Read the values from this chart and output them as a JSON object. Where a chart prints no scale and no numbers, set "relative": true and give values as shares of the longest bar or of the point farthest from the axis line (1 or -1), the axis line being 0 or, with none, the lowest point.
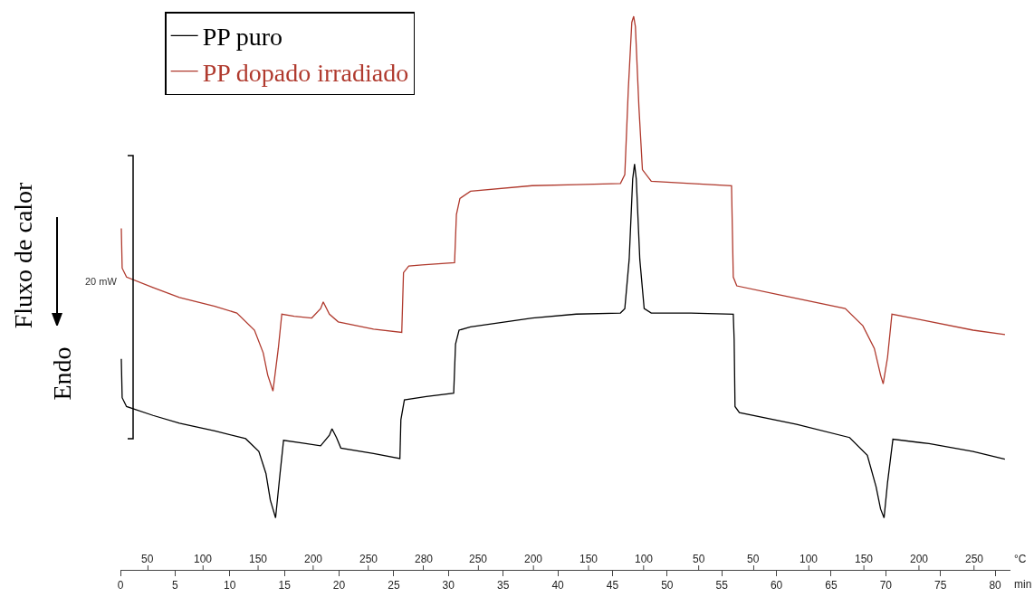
{
  "chart_data": {
    "type": "line",
    "relative": true,
    "ylabel": "Fluxo de calor",
    "xlabel": "min",
    "x2label": "°C",
    "annotations": [
      "Endo",
      "20 mW",
      "50",
      "100",
      "150",
      "200",
      "250",
      "280",
      "250",
      "200",
      "150",
      "100",
      "50",
      "50",
      "100",
      "150",
      "200",
      "250"
    ],
    "xlim": [
      0,
      81.4
    ],
    "xticks": [
      0,
      5,
      10,
      15,
      20,
      25,
      30,
      35,
      40,
      45,
      50,
      55,
      60,
      65,
      70,
      75,
      80
    ],
    "grid": false,
    "legend": "top left",
    "marker": "none",
    "line_style": "solid",
    "series": [
      {
        "name": "PP puro",
        "color": "#000000",
        "x": [
          0.08,
          0.16,
          0.56,
          2.98,
          5.4,
          8.63,
          11.45,
          12.66,
          13.31,
          13.71,
          14.19,
          14.6,
          14.92,
          16.69,
          18.31,
          19.11,
          19.35,
          19.76,
          20.16,
          23.15,
          25.56,
          25.65,
          25.97,
          27.98,
          30.48,
          30.65,
          30.97,
          32.02,
          37.66,
          41.69,
          45.73,
          46.13,
          46.53,
          46.85,
          47.02,
          47.18,
          47.5,
          47.9,
          48.55,
          52.18,
          56.05,
          56.13,
          56.21,
          56.61,
          61.85,
          66.69,
          68.31,
          69.11,
          69.52,
          69.84,
          70.16,
          70.65,
          73.95,
          77.98,
          80.89
        ],
        "values": [
          0.381,
          0.311,
          0.295,
          0.279,
          0.265,
          0.251,
          0.237,
          0.214,
          0.174,
          0.126,
          0.094,
          0.174,
          0.234,
          0.229,
          0.224,
          0.243,
          0.255,
          0.239,
          0.22,
          0.21,
          0.201,
          0.271,
          0.307,
          0.313,
          0.319,
          0.408,
          0.433,
          0.439,
          0.455,
          0.462,
          0.464,
          0.472,
          0.561,
          0.706,
          0.733,
          0.706,
          0.561,
          0.472,
          0.464,
          0.464,
          0.462,
          0.416,
          0.295,
          0.284,
          0.263,
          0.239,
          0.207,
          0.15,
          0.11,
          0.094,
          0.158,
          0.236,
          0.228,
          0.214,
          0.2
        ]
      },
      {
        "name": "PP dopado irradiado",
        "color": "#b03a2e",
        "x": [
          0.08,
          0.16,
          0.56,
          2.98,
          5.4,
          8.63,
          10.65,
          12.26,
          13.06,
          13.47,
          13.95,
          14.44,
          14.76,
          15.89,
          17.5,
          18.31,
          18.55,
          19.11,
          19.92,
          23.15,
          25.73,
          25.89,
          26.37,
          27.58,
          30.56,
          30.73,
          31.05,
          32.02,
          37.66,
          41.69,
          45.73,
          46.13,
          46.45,
          46.77,
          46.94,
          47.1,
          47.42,
          47.74,
          48.55,
          52.18,
          55.89,
          56.05,
          56.37,
          60.24,
          66.29,
          67.9,
          68.95,
          69.52,
          69.76,
          70.16,
          70.56,
          73.15,
          77.98,
          80.9
        ],
        "values": [
          0.617,
          0.545,
          0.529,
          0.51,
          0.492,
          0.476,
          0.464,
          0.433,
          0.392,
          0.352,
          0.323,
          0.4,
          0.462,
          0.458,
          0.455,
          0.472,
          0.484,
          0.462,
          0.448,
          0.435,
          0.429,
          0.537,
          0.549,
          0.551,
          0.555,
          0.642,
          0.671,
          0.684,
          0.694,
          0.696,
          0.698,
          0.714,
          0.868,
          0.989,
          1.0,
          0.981,
          0.836,
          0.723,
          0.702,
          0.698,
          0.694,
          0.529,
          0.513,
          0.497,
          0.472,
          0.441,
          0.4,
          0.352,
          0.336,
          0.384,
          0.462,
          0.452,
          0.433,
          0.425
        ]
      }
    ]
  }
}
